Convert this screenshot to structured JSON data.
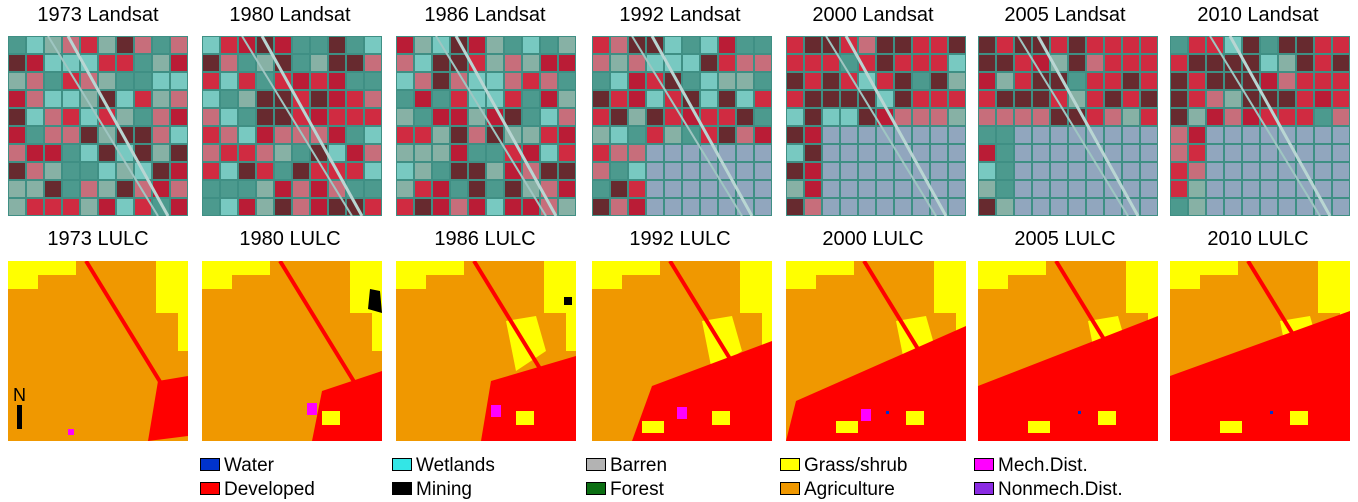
{
  "landsat_titles": [
    "1973 Landsat",
    "1980 Landsat",
    "1986 Landsat",
    "1992 Landsat",
    "2000 Landsat",
    "2005 Landsat",
    "2010 Landsat"
  ],
  "lulc_titles": [
    "1973 LULC",
    "1980 LULC",
    "1986 LULC",
    "1992 LULC",
    "2000 LULC",
    "2005 LULC",
    "2010 LULC"
  ],
  "north_label": "N",
  "legend": [
    {
      "label": "Water",
      "color": "#0033cc"
    },
    {
      "label": "Wetlands",
      "color": "#33e6e6"
    },
    {
      "label": "Barren",
      "color": "#b3b3b3"
    },
    {
      "label": "Grass/shrub",
      "color": "#ffff00"
    },
    {
      "label": "Mech.Dist.",
      "color": "#ff00ff"
    },
    {
      "label": "Developed",
      "color": "#ff0000"
    },
    {
      "label": "Mining",
      "color": "#000000"
    },
    {
      "label": "Forest",
      "color": "#0b6e12"
    },
    {
      "label": "Agriculture",
      "color": "#f09800"
    },
    {
      "label": "Nonmech.Dist.",
      "color": "#8a2be2"
    }
  ],
  "colors": {
    "agriculture": "#f09800",
    "grass": "#ffff00",
    "developed": "#ff0000",
    "mech": "#ff00ff",
    "mining": "#000000",
    "water": "#0033cc",
    "landsat_base": "#3f8f84",
    "landsat_red": "#e0203a",
    "landsat_darkred": "#6b1f26",
    "landsat_urban": "#9aa8c4",
    "landsat_veg": "#7ecfc8"
  }
}
